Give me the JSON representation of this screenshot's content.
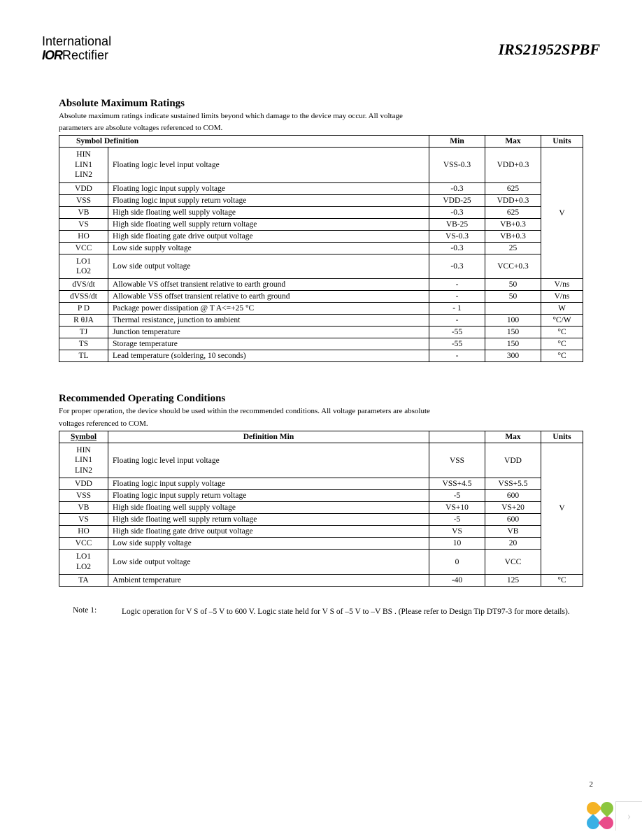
{
  "header": {
    "logo_line1": "International",
    "logo_ior": "IOR",
    "logo_line2_rest": "Rectifier",
    "part_number": "IRS21952SPBF"
  },
  "table1": {
    "title": "Absolute Maximum Ratings",
    "desc_line1": "Absolute maximum ratings indicate sustained limits beyond which damage to the device may occur. All voltage",
    "desc_line2": "parameters are absolute voltages referenced to COM.",
    "headers": {
      "symdef": "Symbol Definition",
      "min": "Min",
      "max": "Max",
      "units": "Units"
    },
    "rows": [
      {
        "sym": "HIN\nLIN1\nLIN2",
        "def": "Floating logic level input voltage",
        "min": "VSS-0.3",
        "max": "VDD+0.3"
      },
      {
        "sym": "VDD",
        "def": "Floating logic input supply voltage",
        "min": "-0.3",
        "max": "625"
      },
      {
        "sym": "VSS",
        "def": "Floating logic input supply return voltage",
        "min": "VDD-25",
        "max": "VDD+0.3"
      },
      {
        "sym": "VB",
        "def": "High side floating well supply voltage",
        "min": "-0.3",
        "max": "625"
      },
      {
        "sym": "VS",
        "def": "High side floating well supply return voltage",
        "min": "VB-25",
        "max": "VB+0.3"
      },
      {
        "sym": "HO",
        "def": "High side floating gate drive output voltage",
        "min": "VS-0.3",
        "max": "VB+0.3"
      },
      {
        "sym": "VCC",
        "def": "Low side supply voltage",
        "min": "-0.3",
        "max": "25"
      },
      {
        "sym": "LO1\nLO2",
        "def": "Low side output voltage",
        "min": "-0.3",
        "max": "VCC+0.3"
      }
    ],
    "unit_v": "V",
    "rows2": [
      {
        "sym": "dVS/dt",
        "def": "Allowable VS offset transient relative to earth ground",
        "min": "-",
        "max": "50",
        "units": "V/ns"
      },
      {
        "sym": "dVSS/dt",
        "def": "Allowable VSS offset transient relative to earth ground",
        "min": "-",
        "max": "50",
        "units": "V/ns"
      },
      {
        "sym": "P D",
        "def": "Package power dissipation @ T        A<=+25 °C",
        "min": "- 1",
        "max": "",
        "units": "W"
      },
      {
        "sym": "R θJA",
        "def": "Thermal resistance, junction to ambient",
        "min": "-",
        "max": "100",
        "units": "°C/W"
      },
      {
        "sym": "TJ",
        "def": "Junction temperature",
        "min": "-55",
        "max": "150",
        "units": "°C"
      },
      {
        "sym": "TS",
        "def": "Storage temperature",
        "min": "-55",
        "max": "150",
        "units": "°C"
      },
      {
        "sym": "TL",
        "def": "Lead temperature (soldering, 10 seconds)",
        "min": "-",
        "max": "300",
        "units": "°C"
      }
    ]
  },
  "table2": {
    "title": "Recommended Operating Conditions",
    "desc_line1": "For proper operation, the device should be used within the recommended conditions. All voltage parameters are absolute",
    "desc_line2": "voltages referenced to COM.",
    "headers": {
      "sym": "Symbol",
      "def": "Definition Min",
      "min": "",
      "max": "Max",
      "units": "Units"
    },
    "rows": [
      {
        "sym": "HIN\nLIN1\nLIN2",
        "def": "Floating logic level input voltage",
        "min": "VSS",
        "max": "VDD"
      },
      {
        "sym": "VDD",
        "def": "Floating logic input supply voltage",
        "min": "VSS+4.5",
        "max": "VSS+5.5"
      },
      {
        "sym": "VSS",
        "def": "Floating logic input supply return voltage",
        "min": "-5",
        "max": "600"
      },
      {
        "sym": "VB",
        "def": "High side floating well supply voltage",
        "min": "VS+10",
        "max": "VS+20"
      },
      {
        "sym": "VS",
        "def": "High side floating well supply return voltage",
        "min": "-5",
        "max": "600"
      },
      {
        "sym": "HO",
        "def": "High side floating gate drive output voltage",
        "min": "VS",
        "max": "VB"
      },
      {
        "sym": "VCC",
        "def": "Low side supply voltage",
        "min": "10",
        "max": "20"
      },
      {
        "sym": "LO1\nLO2",
        "def": "Low side output voltage",
        "min": "0",
        "max": "VCC"
      }
    ],
    "unit_v": "V",
    "rows2": [
      {
        "sym": "TA",
        "def": "Ambient temperature",
        "min": "-40",
        "max": "125",
        "units": "°C"
      }
    ]
  },
  "note": {
    "label": "Note 1:",
    "text": "Logic operation for V      S of –5 V to 600 V. Logic state held for V            S of –5 V to –V     BS . (Please refer to Design Tip DT97-3 for more details)."
  },
  "page_number": "2",
  "colors": {
    "text": "#000000",
    "bg": "#ffffff",
    "border": "#000000"
  }
}
